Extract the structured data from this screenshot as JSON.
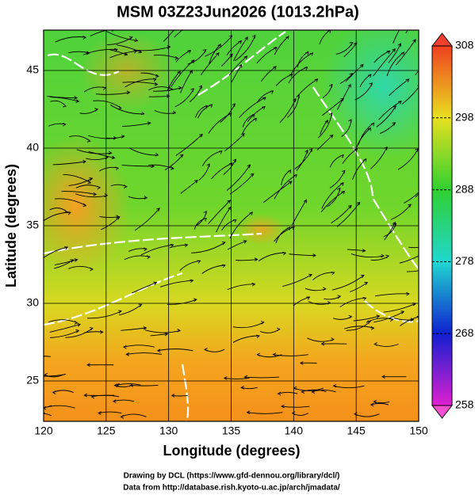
{
  "chart_data": {
    "type": "map",
    "title": "MSM 03Z23Jun2026 (1013.2hPa)",
    "xlabel": "Longitude (degrees)",
    "ylabel": "Latitude  (degrees)",
    "xlim": [
      120,
      150
    ],
    "ylim": [
      22.4,
      47.6
    ],
    "xticks": [
      120,
      125,
      130,
      135,
      140,
      145,
      150
    ],
    "yticks": [
      25,
      30,
      35,
      40,
      45
    ],
    "grid": true,
    "colorbar": {
      "lim": [
        258,
        308
      ],
      "ticks": [
        258,
        268,
        278,
        288,
        298,
        308
      ]
    },
    "credits": [
      "Drawing by DCL (https://www.gfd-dennou.org/library/dcl/)",
      "Data from http://database.rish.kyoto-u.ac.jp/arch/jmadata/"
    ]
  }
}
